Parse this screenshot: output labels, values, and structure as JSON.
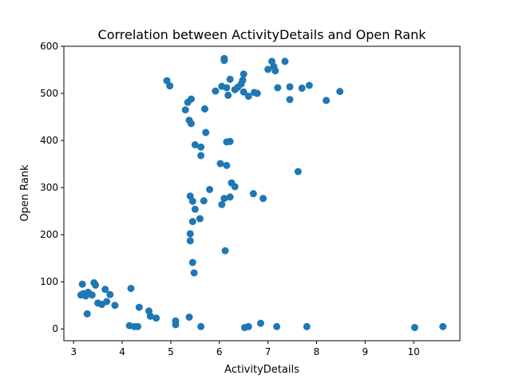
{
  "chart_data": {
    "type": "scatter",
    "title": "Correlation between ActivityDetails and Open Rank",
    "xlabel": "ActivityDetails",
    "ylabel": "Open Rank",
    "xlim": [
      2.8,
      10.95
    ],
    "ylim": [
      -25,
      600
    ],
    "xticks": [
      "3",
      "4",
      "5",
      "6",
      "7",
      "8",
      "9",
      "10"
    ],
    "yticks": [
      "0",
      "100",
      "200",
      "300",
      "400",
      "500",
      "600"
    ],
    "grid": false,
    "marker_color": "#1f77b4",
    "points": [
      [
        3.15,
        72
      ],
      [
        3.18,
        95
      ],
      [
        3.2,
        75
      ],
      [
        3.25,
        70
      ],
      [
        3.28,
        32
      ],
      [
        3.3,
        78
      ],
      [
        3.38,
        72
      ],
      [
        3.42,
        98
      ],
      [
        3.45,
        93
      ],
      [
        3.5,
        55
      ],
      [
        3.58,
        52
      ],
      [
        3.65,
        84
      ],
      [
        3.68,
        58
      ],
      [
        3.75,
        73
      ],
      [
        3.85,
        50
      ],
      [
        4.15,
        7
      ],
      [
        4.18,
        86
      ],
      [
        4.25,
        5
      ],
      [
        4.32,
        5
      ],
      [
        4.35,
        46
      ],
      [
        4.55,
        38
      ],
      [
        4.58,
        27
      ],
      [
        4.7,
        23
      ],
      [
        5.1,
        17
      ],
      [
        5.1,
        9
      ],
      [
        5.38,
        25
      ],
      [
        5.62,
        5
      ],
      [
        6.52,
        3
      ],
      [
        6.6,
        5
      ],
      [
        6.85,
        12
      ],
      [
        7.18,
        5
      ],
      [
        7.8,
        5
      ],
      [
        10.02,
        3
      ],
      [
        10.6,
        5
      ],
      [
        5.4,
        187
      ],
      [
        5.4,
        202
      ],
      [
        5.45,
        228
      ],
      [
        5.5,
        254
      ],
      [
        5.6,
        234
      ],
      [
        5.45,
        141
      ],
      [
        5.48,
        119
      ],
      [
        6.12,
        166
      ],
      [
        5.4,
        282
      ],
      [
        5.45,
        271
      ],
      [
        5.68,
        272
      ],
      [
        5.8,
        296
      ],
      [
        6.05,
        264
      ],
      [
        6.1,
        277
      ],
      [
        6.22,
        280
      ],
      [
        6.25,
        310
      ],
      [
        6.32,
        302
      ],
      [
        6.7,
        287
      ],
      [
        6.9,
        277
      ],
      [
        6.02,
        351
      ],
      [
        6.15,
        347
      ],
      [
        7.62,
        334
      ],
      [
        5.5,
        391
      ],
      [
        5.62,
        386
      ],
      [
        5.62,
        368
      ],
      [
        5.72,
        417
      ],
      [
        6.15,
        397
      ],
      [
        6.22,
        398
      ],
      [
        5.3,
        465
      ],
      [
        5.35,
        481
      ],
      [
        5.42,
        488
      ],
      [
        5.38,
        443
      ],
      [
        5.42,
        436
      ],
      [
        5.7,
        467
      ],
      [
        4.92,
        527
      ],
      [
        4.98,
        516
      ],
      [
        5.92,
        505
      ],
      [
        6.05,
        515
      ],
      [
        6.1,
        570
      ],
      [
        6.1,
        574
      ],
      [
        6.15,
        512
      ],
      [
        6.18,
        496
      ],
      [
        6.22,
        530
      ],
      [
        6.32,
        508
      ],
      [
        6.38,
        513
      ],
      [
        6.45,
        520
      ],
      [
        6.48,
        528
      ],
      [
        6.5,
        541
      ],
      [
        6.5,
        503
      ],
      [
        6.6,
        494
      ],
      [
        6.72,
        502
      ],
      [
        6.78,
        500
      ],
      [
        7.0,
        551
      ],
      [
        7.08,
        568
      ],
      [
        7.12,
        557
      ],
      [
        7.15,
        548
      ],
      [
        7.2,
        512
      ],
      [
        7.35,
        568
      ],
      [
        7.45,
        514
      ],
      [
        7.45,
        487
      ],
      [
        7.7,
        511
      ],
      [
        7.85,
        517
      ],
      [
        8.2,
        485
      ],
      [
        8.48,
        504
      ]
    ]
  }
}
